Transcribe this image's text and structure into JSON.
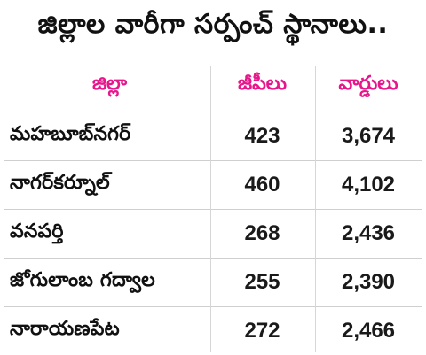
{
  "title": "జిల్లాల వారీగా సర్పంచ్ స్థానాలు..",
  "table": {
    "headers": [
      "జిల్లా",
      "జీపీలు",
      "వార్డులు"
    ],
    "rows": [
      {
        "district": "మహబూబ్‌నగర్",
        "gps": "423",
        "wards": "3,674"
      },
      {
        "district": "నాగర్‌కర్నూల్",
        "gps": "460",
        "wards": "4,102"
      },
      {
        "district": "వనపర్తి",
        "gps": "268",
        "wards": "2,436"
      },
      {
        "district": "జోగులాంబ గద్వాల",
        "gps": "255",
        "wards": "2,390"
      },
      {
        "district": "నారాయణపేట",
        "gps": "272",
        "wards": "2,466"
      }
    ]
  }
}
